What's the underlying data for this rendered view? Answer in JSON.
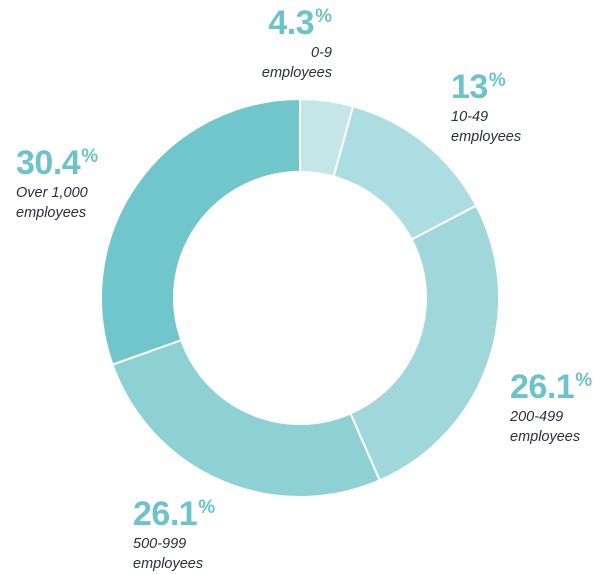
{
  "chart_data": {
    "type": "pie",
    "donut": true,
    "percent_symbol": "%",
    "slices": [
      {
        "value": 4.3,
        "value_label": "4.3",
        "label_lines": [
          "0-9",
          "employees"
        ],
        "color": "#c4e6e9"
      },
      {
        "value": 13,
        "value_label": "13",
        "label_lines": [
          "10-49",
          "employees"
        ],
        "color": "#acdde0"
      },
      {
        "value": 26.1,
        "value_label": "26.1",
        "label_lines": [
          "200-499",
          "employees"
        ],
        "color": "#9fd7db"
      },
      {
        "value": 26.1,
        "value_label": "26.1",
        "label_lines": [
          "500-999",
          "employees"
        ],
        "color": "#8dd1d5"
      },
      {
        "value": 30.4,
        "value_label": "30.4",
        "label_lines": [
          "Over 1,000",
          "employees"
        ],
        "color": "#70c6cb"
      }
    ],
    "colors": {
      "label_value": "#6cc3c9",
      "label_text": "#2a2f3d",
      "separator": "#ffffff"
    }
  }
}
